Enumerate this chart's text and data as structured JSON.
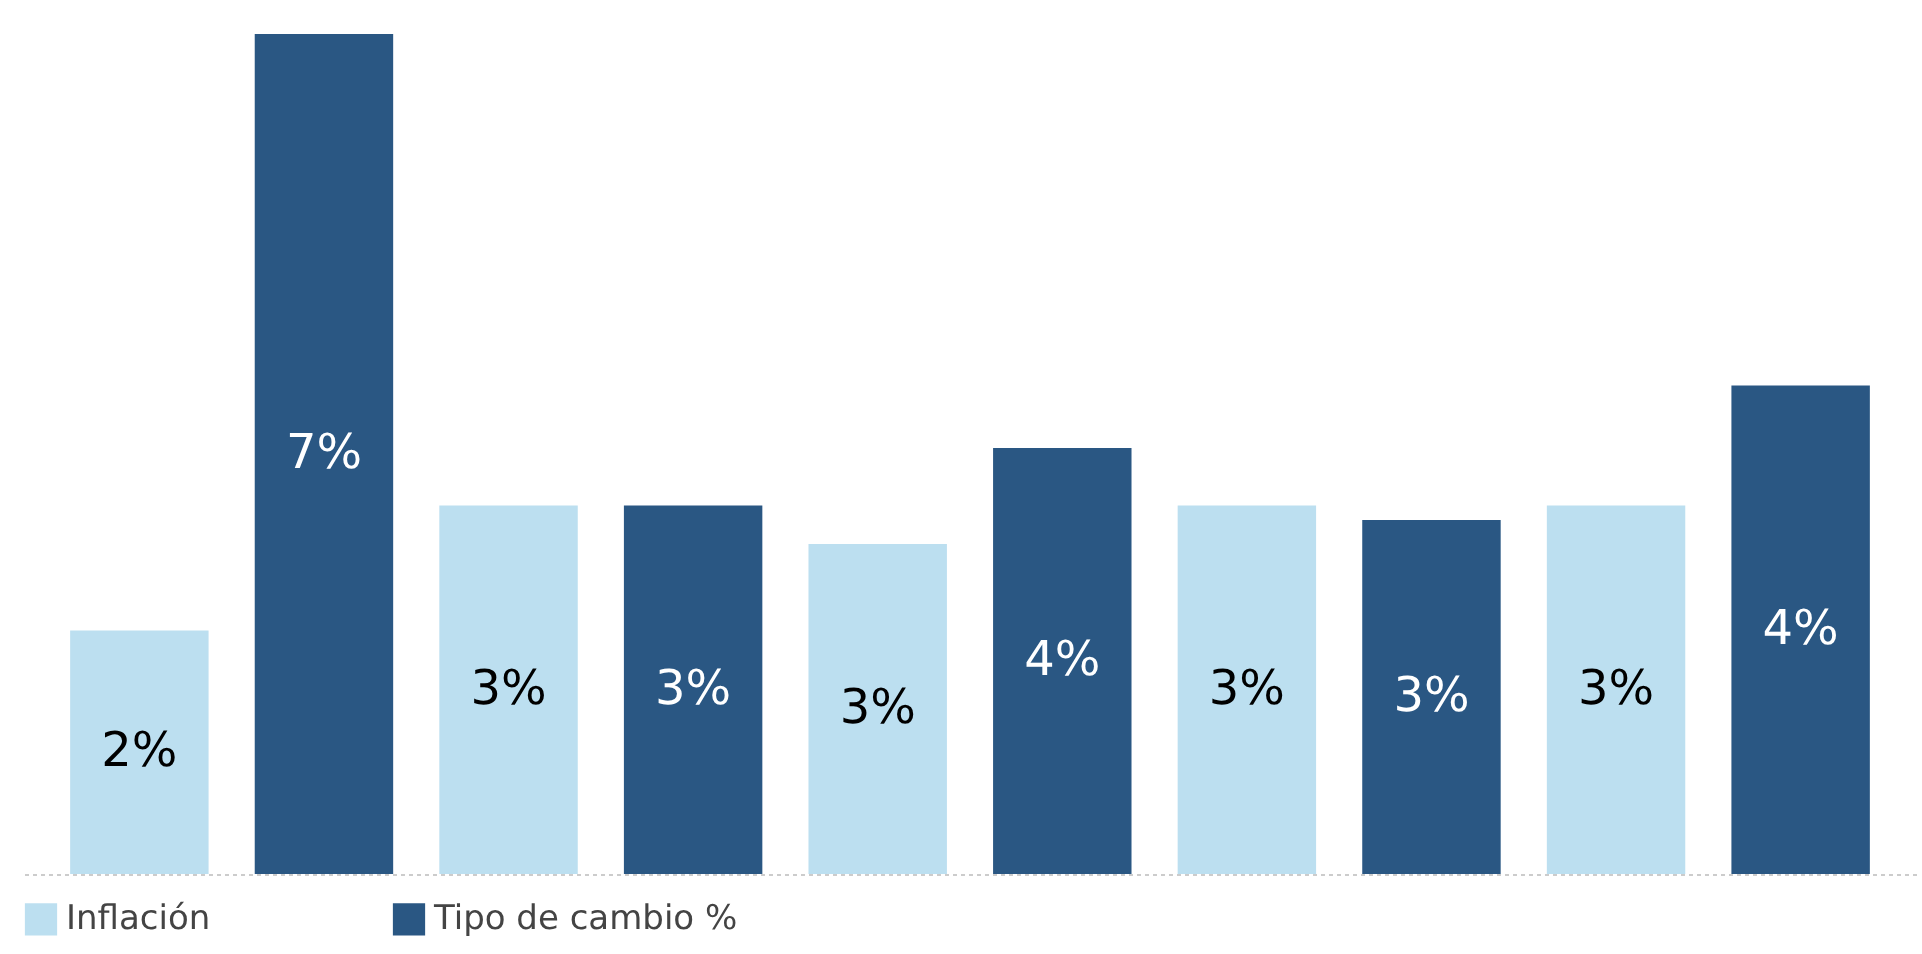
{
  "chart_data": {
    "type": "bar",
    "categories": [
      null,
      null,
      null,
      null,
      null
    ],
    "series": [
      {
        "name": "Inflación",
        "color": "#bcdff0",
        "values": [
          2.03,
          3.07,
          2.75,
          3.07,
          3.07
        ],
        "value_labels": [
          "2%",
          "3%",
          "3%",
          "3%",
          "3%"
        ]
      },
      {
        "name": "Tipo de cambio %",
        "color": "#2a5783",
        "values": [
          7.0,
          3.07,
          3.55,
          2.95,
          4.07
        ],
        "value_labels": [
          "7%",
          "3%",
          "4%",
          "3%",
          "4%"
        ]
      }
    ],
    "ylim": [
      0,
      7
    ],
    "legend": "bottom left",
    "grid": false,
    "tick_labels": false
  }
}
